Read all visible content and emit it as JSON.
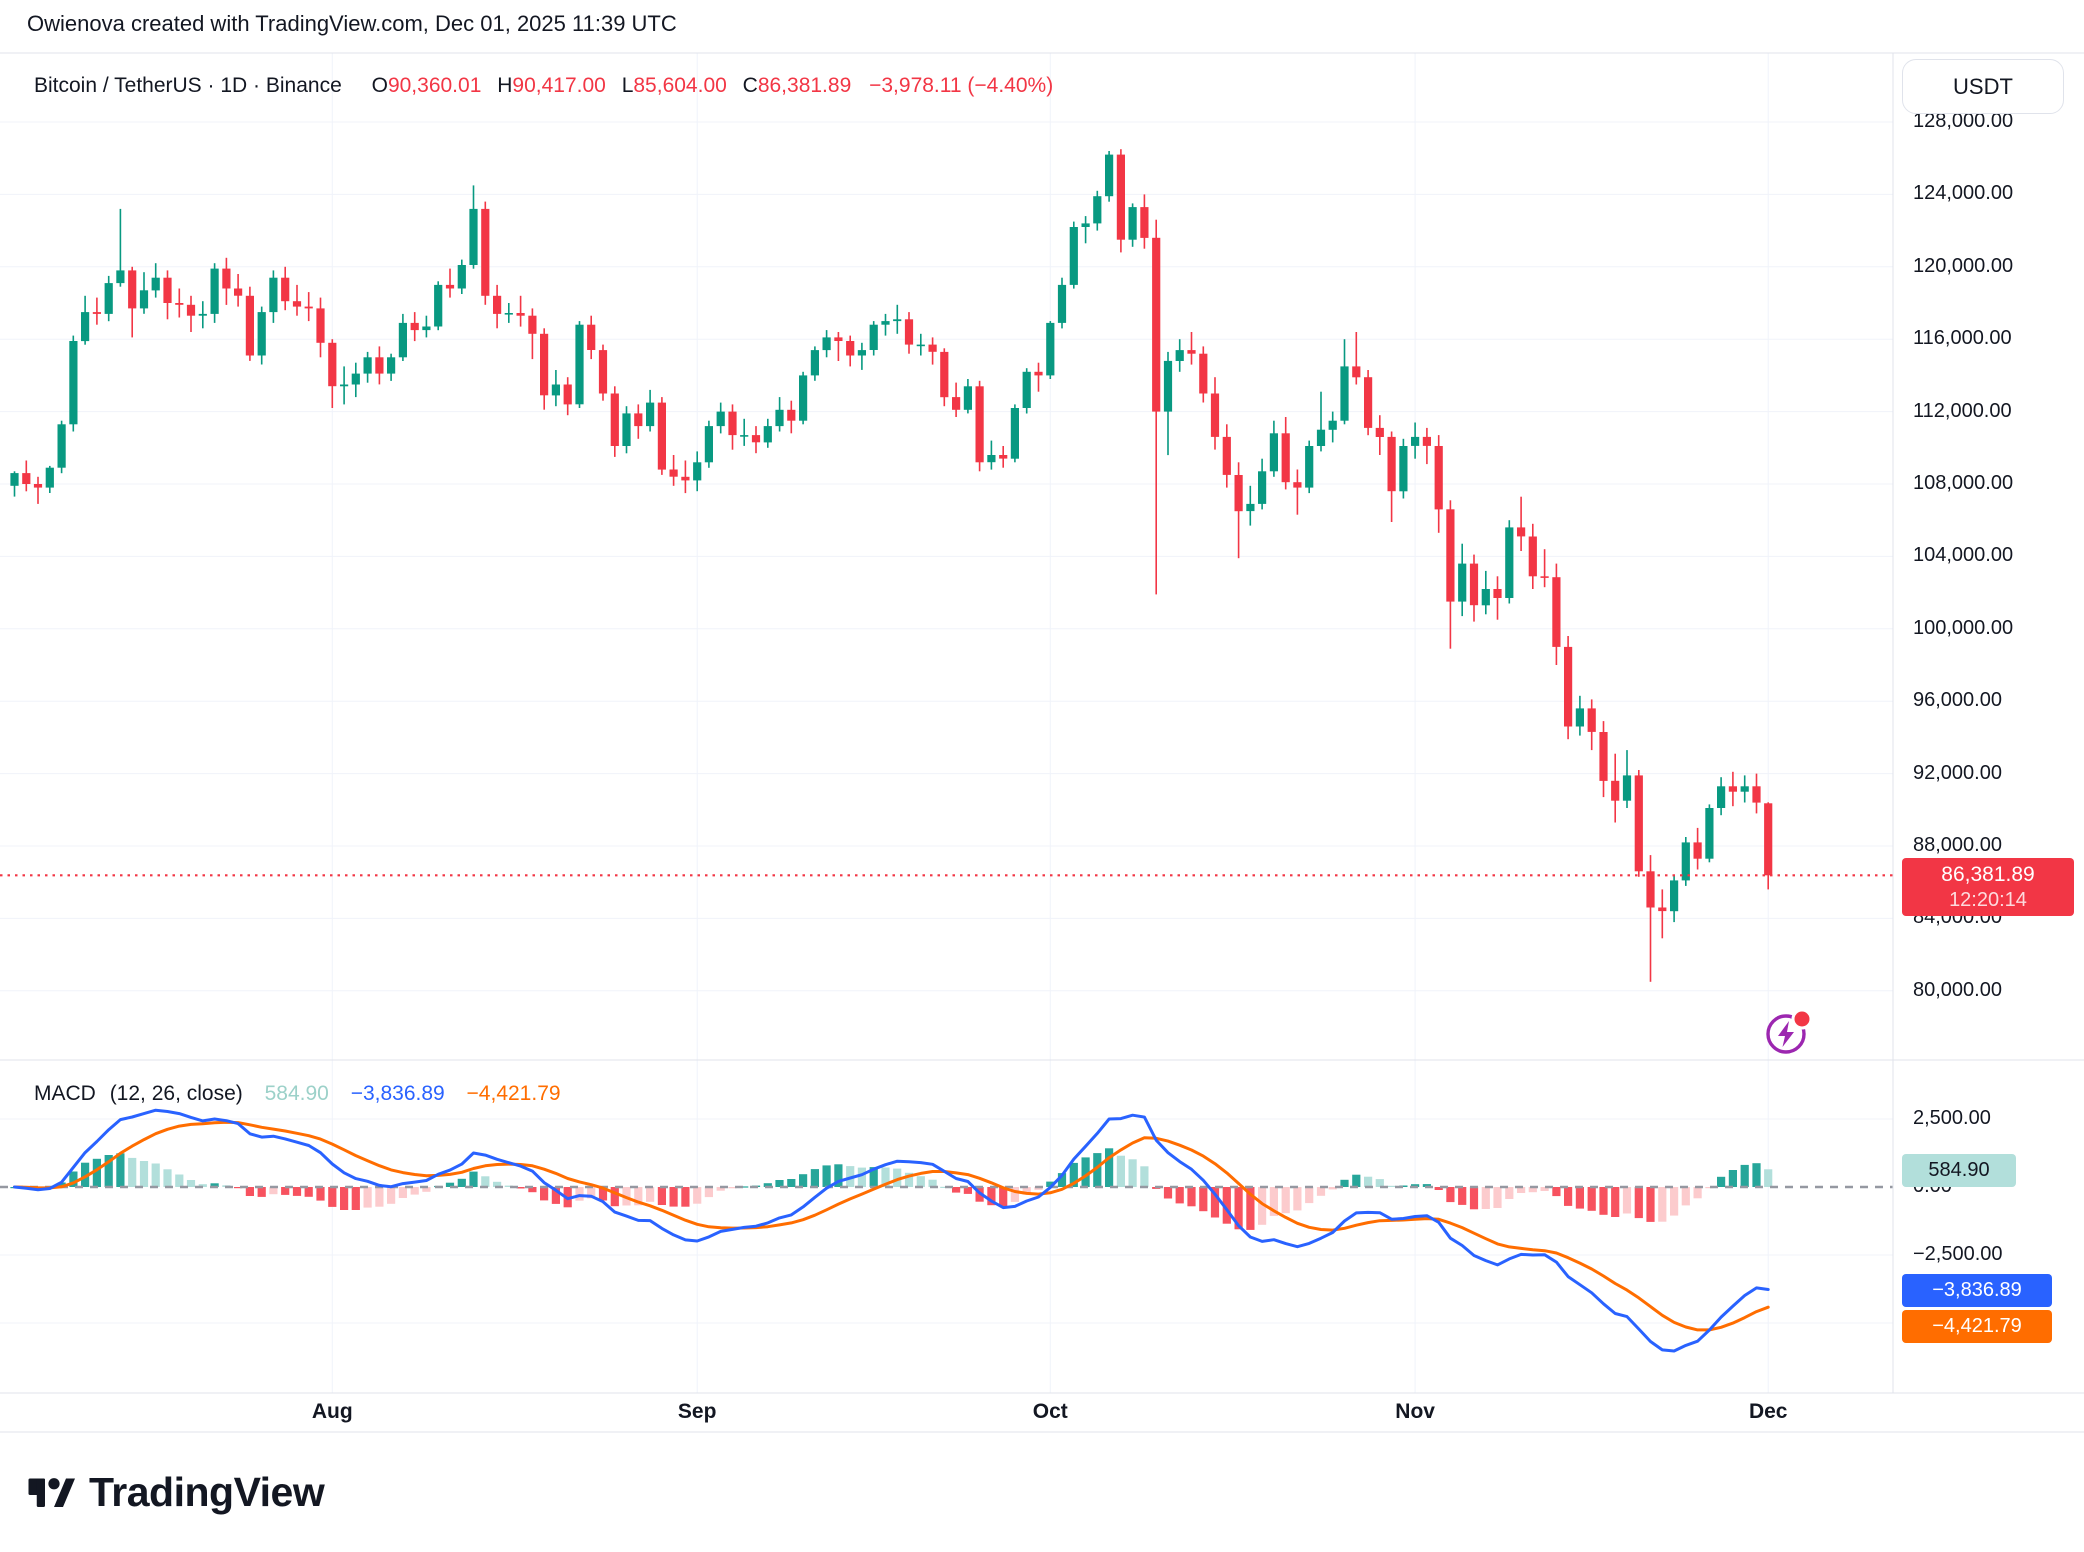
{
  "header": {
    "attribution": "Owienova created with TradingView.com, Dec 01, 2025 11:39 UTC"
  },
  "toolbar": {
    "currency_button": "USDT"
  },
  "title": {
    "symbol": "Bitcoin / TetherUS · 1D · Binance",
    "o_label": "O",
    "o_value": "90,360.01",
    "h_label": "H",
    "h_value": "90,417.00",
    "l_label": "L",
    "l_value": "85,604.00",
    "c_label": "C",
    "c_value": "86,381.89",
    "change": "−3,978.11 (−4.40%)"
  },
  "price_axis": {
    "labels": [
      "128,000.00",
      "124,000.00",
      "120,000.00",
      "116,000.00",
      "112,000.00",
      "108,000.00",
      "104,000.00",
      "100,000.00",
      "96,000.00",
      "92,000.00",
      "88,000.00",
      "84,000.00",
      "80,000.00"
    ],
    "values": [
      128000,
      124000,
      120000,
      116000,
      112000,
      108000,
      104000,
      100000,
      96000,
      92000,
      88000,
      84000,
      80000
    ]
  },
  "price_badge": {
    "price": "86,381.89",
    "countdown": "12:20:14"
  },
  "macd": {
    "name": "MACD",
    "params": "(12, 26, close)",
    "hist_value": "584.90",
    "macd_value": "−3,836.89",
    "signal_value": "−4,421.79",
    "axis_labels": [
      "2,500.00",
      "0.00",
      "−2,500.00"
    ],
    "axis_values": [
      2500,
      0,
      -2500
    ]
  },
  "time_axis": {
    "months": [
      "Aug",
      "Sep",
      "Oct",
      "Nov",
      "Dec"
    ]
  },
  "footer": {
    "brand": "TradingView"
  },
  "colors": {
    "up": "#089981",
    "down": "#F23645",
    "macd_line": "#2962FF",
    "signal_line": "#FF6D00",
    "hist_up": "#26A69A",
    "hist_up_fade": "#B2DFDB",
    "hist_down": "#F7525F",
    "hist_down_fade": "#FCCBCD",
    "grid": "#F0F3FA",
    "border": "#E0E3EB",
    "last_price": "#F23645",
    "zero_line": "#9598A1",
    "flash_purple": "#9C27B0",
    "text": "#131722"
  },
  "chart_data": {
    "type": "candlestick",
    "symbol": "Bitcoin / TetherUS",
    "interval": "1D",
    "exchange": "Binance",
    "ohlc_display": {
      "open": "90,360.01",
      "high": "90,417.00",
      "low": "85,604.00",
      "close": "86,381.89",
      "change": "−3,978.11 (−4.40%)"
    },
    "last_close": 86381.89,
    "price_gridlines": [
      128000,
      124000,
      120000,
      116000,
      112000,
      108000,
      104000,
      100000,
      96000,
      92000,
      88000,
      84000,
      80000
    ],
    "month_tick_indices": [
      27,
      58,
      88,
      119,
      149
    ],
    "grid": true,
    "legend_position": "top-left",
    "indicator": {
      "type": "MACD",
      "fast": 12,
      "slow": 26,
      "signal": 9,
      "source": "close",
      "current": {
        "histogram": 584.9,
        "macd": -3836.89,
        "signal": -4421.79
      },
      "gridlines": [
        2500,
        -2500,
        -5000
      ]
    },
    "candles": [
      [
        107900,
        108700,
        107300,
        108600
      ],
      [
        108600,
        109300,
        107600,
        108000
      ],
      [
        108000,
        108400,
        106900,
        107800
      ],
      [
        107800,
        109000,
        107500,
        108900
      ],
      [
        108900,
        111500,
        108600,
        111300
      ],
      [
        111300,
        116200,
        110900,
        115900
      ],
      [
        115900,
        118400,
        115700,
        117500
      ],
      [
        117500,
        118300,
        116800,
        117400
      ],
      [
        117400,
        119500,
        117000,
        119100
      ],
      [
        119100,
        123200,
        118900,
        119800
      ],
      [
        119800,
        120000,
        116100,
        117700
      ],
      [
        117700,
        119700,
        117400,
        118700
      ],
      [
        118700,
        120200,
        118300,
        119400
      ],
      [
        119400,
        119800,
        117100,
        118000
      ],
      [
        118000,
        118800,
        117200,
        117900
      ],
      [
        117900,
        118400,
        116400,
        117300
      ],
      [
        117300,
        118100,
        116600,
        117400
      ],
      [
        117400,
        120200,
        116900,
        119900
      ],
      [
        119900,
        120500,
        117900,
        118800
      ],
      [
        118800,
        119600,
        117800,
        118400
      ],
      [
        118400,
        118900,
        114800,
        115100
      ],
      [
        115100,
        117800,
        114600,
        117500
      ],
      [
        117500,
        119800,
        116900,
        119400
      ],
      [
        119400,
        120000,
        117600,
        118100
      ],
      [
        118100,
        119000,
        117300,
        117800
      ],
      [
        117800,
        118600,
        117000,
        117700
      ],
      [
        117700,
        118300,
        115000,
        115800
      ],
      [
        115800,
        116000,
        112200,
        113400
      ],
      [
        113400,
        114500,
        112400,
        113500
      ],
      [
        113500,
        114700,
        112800,
        114100
      ],
      [
        114100,
        115300,
        113600,
        115000
      ],
      [
        115000,
        115600,
        113500,
        114100
      ],
      [
        114100,
        115200,
        113700,
        115000
      ],
      [
        115000,
        117400,
        114800,
        116900
      ],
      [
        116900,
        117500,
        115900,
        116500
      ],
      [
        116500,
        117300,
        116100,
        116700
      ],
      [
        116700,
        119200,
        116500,
        119000
      ],
      [
        119000,
        119900,
        118300,
        118800
      ],
      [
        118800,
        120400,
        118500,
        120100
      ],
      [
        120100,
        124500,
        119900,
        123200
      ],
      [
        123200,
        123600,
        117900,
        118400
      ],
      [
        118400,
        119000,
        116600,
        117400
      ],
      [
        117400,
        118000,
        116900,
        117450
      ],
      [
        117450,
        118400,
        116700,
        117300
      ],
      [
        117300,
        117700,
        114900,
        116300
      ],
      [
        116300,
        116600,
        112100,
        112900
      ],
      [
        112900,
        114300,
        112300,
        113500
      ],
      [
        113500,
        113900,
        111800,
        112400
      ],
      [
        112400,
        117000,
        112200,
        116800
      ],
      [
        116800,
        117300,
        114900,
        115400
      ],
      [
        115400,
        115700,
        112600,
        113000
      ],
      [
        113000,
        113400,
        109500,
        110100
      ],
      [
        110100,
        112300,
        109700,
        111900
      ],
      [
        111900,
        112400,
        110500,
        111200
      ],
      [
        111200,
        113200,
        110900,
        112500
      ],
      [
        112500,
        112800,
        108500,
        108800
      ],
      [
        108800,
        109600,
        107900,
        108400
      ],
      [
        108400,
        109300,
        107500,
        108200
      ],
      [
        108200,
        109800,
        107600,
        109200
      ],
      [
        109200,
        111500,
        108900,
        111200
      ],
      [
        111200,
        112500,
        110800,
        112000
      ],
      [
        112000,
        112400,
        109900,
        110700
      ],
      [
        110700,
        111600,
        110100,
        110700
      ],
      [
        110700,
        111200,
        109700,
        110300
      ],
      [
        110300,
        111600,
        110000,
        111200
      ],
      [
        111200,
        112800,
        110900,
        112100
      ],
      [
        112100,
        112600,
        110800,
        111500
      ],
      [
        111500,
        114200,
        111300,
        114000
      ],
      [
        114000,
        115600,
        113700,
        115400
      ],
      [
        115400,
        116500,
        115000,
        116100
      ],
      [
        116100,
        116400,
        114800,
        115900
      ],
      [
        115900,
        116200,
        114500,
        115100
      ],
      [
        115100,
        115800,
        114300,
        115400
      ],
      [
        115400,
        117000,
        115100,
        116800
      ],
      [
        116800,
        117400,
        116200,
        117000
      ],
      [
        117000,
        117900,
        116300,
        117100
      ],
      [
        117100,
        117500,
        115200,
        115700
      ],
      [
        115700,
        116300,
        115100,
        115700
      ],
      [
        115700,
        116100,
        114600,
        115300
      ],
      [
        115300,
        115500,
        112300,
        112800
      ],
      [
        112800,
        113600,
        111700,
        112100
      ],
      [
        112100,
        113800,
        111900,
        113400
      ],
      [
        113400,
        113700,
        108700,
        109200
      ],
      [
        109200,
        110400,
        108800,
        109600
      ],
      [
        109600,
        110100,
        108900,
        109400
      ],
      [
        109400,
        112400,
        109200,
        112200
      ],
      [
        112200,
        114400,
        111900,
        114200
      ],
      [
        114200,
        114700,
        113100,
        114000
      ],
      [
        114000,
        117000,
        113800,
        116900
      ],
      [
        116900,
        119400,
        116600,
        119000
      ],
      [
        119000,
        122500,
        118800,
        122200
      ],
      [
        122200,
        122800,
        121300,
        122400
      ],
      [
        122400,
        124200,
        122000,
        123900
      ],
      [
        123900,
        126400,
        123600,
        126200
      ],
      [
        126200,
        126500,
        120800,
        121500
      ],
      [
        121500,
        123500,
        121100,
        123300
      ],
      [
        123300,
        124000,
        121000,
        121600
      ],
      [
        121600,
        122600,
        101900,
        112000
      ],
      [
        112000,
        115300,
        109600,
        114800
      ],
      [
        114800,
        116000,
        114200,
        115400
      ],
      [
        115400,
        116400,
        114600,
        115200
      ],
      [
        115200,
        115600,
        112500,
        113000
      ],
      [
        113000,
        113900,
        109900,
        110600
      ],
      [
        110600,
        111300,
        107800,
        108500
      ],
      [
        108500,
        109200,
        103900,
        106500
      ],
      [
        106500,
        107900,
        105700,
        106900
      ],
      [
        106900,
        109400,
        106600,
        108700
      ],
      [
        108700,
        111500,
        108400,
        110800
      ],
      [
        110800,
        111700,
        107700,
        108100
      ],
      [
        108100,
        108800,
        106300,
        107800
      ],
      [
        107800,
        110400,
        107500,
        110100
      ],
      [
        110100,
        113100,
        109800,
        111000
      ],
      [
        111000,
        112000,
        110300,
        111500
      ],
      [
        111500,
        116000,
        111300,
        114500
      ],
      [
        114500,
        116400,
        113500,
        113900
      ],
      [
        113900,
        114300,
        110700,
        111100
      ],
      [
        111100,
        111800,
        109600,
        110600
      ],
      [
        110600,
        110900,
        105900,
        107600
      ],
      [
        107600,
        110500,
        107200,
        110100
      ],
      [
        110100,
        111400,
        109400,
        110600
      ],
      [
        110600,
        111100,
        109100,
        110100
      ],
      [
        110100,
        110700,
        105300,
        106600
      ],
      [
        106600,
        107100,
        98900,
        101500
      ],
      [
        101500,
        104700,
        100700,
        103600
      ],
      [
        103600,
        104100,
        100400,
        101300
      ],
      [
        101300,
        103200,
        100800,
        102200
      ],
      [
        102200,
        102900,
        100500,
        101700
      ],
      [
        101700,
        106000,
        101400,
        105600
      ],
      [
        105600,
        107300,
        104300,
        105100
      ],
      [
        105100,
        105800,
        102200,
        102900
      ],
      [
        102900,
        104400,
        102300,
        102850
      ],
      [
        102850,
        103600,
        98000,
        99000
      ],
      [
        99000,
        99600,
        93900,
        94600
      ],
      [
        94600,
        96300,
        94100,
        95600
      ],
      [
        95600,
        96100,
        93300,
        94300
      ],
      [
        94300,
        94900,
        90700,
        91600
      ],
      [
        91600,
        93100,
        89300,
        90500
      ],
      [
        90500,
        93300,
        90100,
        91900
      ],
      [
        91900,
        92200,
        86300,
        86600
      ],
      [
        86600,
        87500,
        80500,
        84600
      ],
      [
        84600,
        85600,
        82900,
        84400
      ],
      [
        84400,
        86400,
        83800,
        86100
      ],
      [
        86100,
        88500,
        85800,
        88200
      ],
      [
        88200,
        89000,
        86700,
        87300
      ],
      [
        87300,
        90300,
        87100,
        90100
      ],
      [
        90100,
        91800,
        89700,
        91300
      ],
      [
        91300,
        92100,
        90200,
        91000
      ],
      [
        91000,
        91900,
        90400,
        91300
      ],
      [
        91300,
        92000,
        89800,
        90400
      ],
      [
        90360.01,
        90417,
        85604,
        86381.89
      ]
    ]
  }
}
